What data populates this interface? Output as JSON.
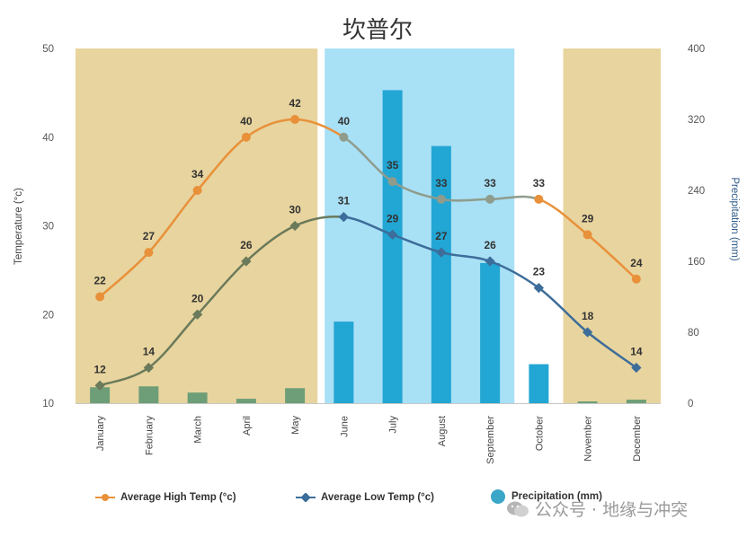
{
  "chart_data": {
    "type": "bar+line",
    "title": "坎普尔",
    "categories": [
      "January",
      "February",
      "March",
      "April",
      "May",
      "June",
      "July",
      "August",
      "September",
      "October",
      "November",
      "December"
    ],
    "series": [
      {
        "name": "Average High Temp (°c)",
        "type": "line",
        "axis": "left",
        "color": "#e8913a",
        "values": [
          22,
          27,
          34,
          40,
          42,
          40,
          35,
          33,
          33,
          33,
          29,
          24
        ],
        "labels": [
          "22",
          "27",
          "34",
          "40",
          "42",
          "40",
          "35",
          "33",
          "33",
          "33",
          "29",
          "24"
        ]
      },
      {
        "name": "Average Low Temp (°c)",
        "type": "line",
        "axis": "left",
        "color": "#3d6d9a",
        "values": [
          12,
          14,
          20,
          26,
          30,
          31,
          29,
          27,
          26,
          23,
          18,
          14
        ],
        "labels": [
          "12",
          "14",
          "20",
          "26",
          "30",
          "31",
          "29",
          "27",
          "26",
          "23",
          "18",
          "14"
        ]
      },
      {
        "name": "Precipitation (mm)",
        "type": "bar",
        "axis": "right",
        "color": "#22a6d4",
        "values": [
          18,
          19,
          12,
          5,
          17,
          92,
          353,
          290,
          158,
          44,
          2,
          4
        ]
      }
    ],
    "left_axis": {
      "label": "Temperature (°c)",
      "min": 10,
      "max": 50,
      "ticks": [
        "10",
        "20",
        "30",
        "40",
        "50"
      ]
    },
    "right_axis": {
      "label": "Precipitation (mm)",
      "min": 0,
      "max": 400,
      "ticks": [
        "0",
        "80",
        "160",
        "240",
        "320",
        "400"
      ]
    },
    "season_bands": [
      {
        "from_month": "January",
        "to_month": "May",
        "color": "#e8d49e"
      },
      {
        "from_month": "June",
        "to_month": "September",
        "color": "#a8e0f5"
      },
      {
        "from_month": "November",
        "to_month": "December",
        "color": "#e8d49e"
      }
    ],
    "legend_position": "bottom"
  },
  "watermark": {
    "text": "公众号 · 地缘与冲突"
  },
  "colors": {
    "high": "#e8913a",
    "low": "#3d6d9a",
    "precip": "#22a6d4",
    "dry_band": "#e8d49e",
    "wet_band": "#a8e0f5"
  }
}
